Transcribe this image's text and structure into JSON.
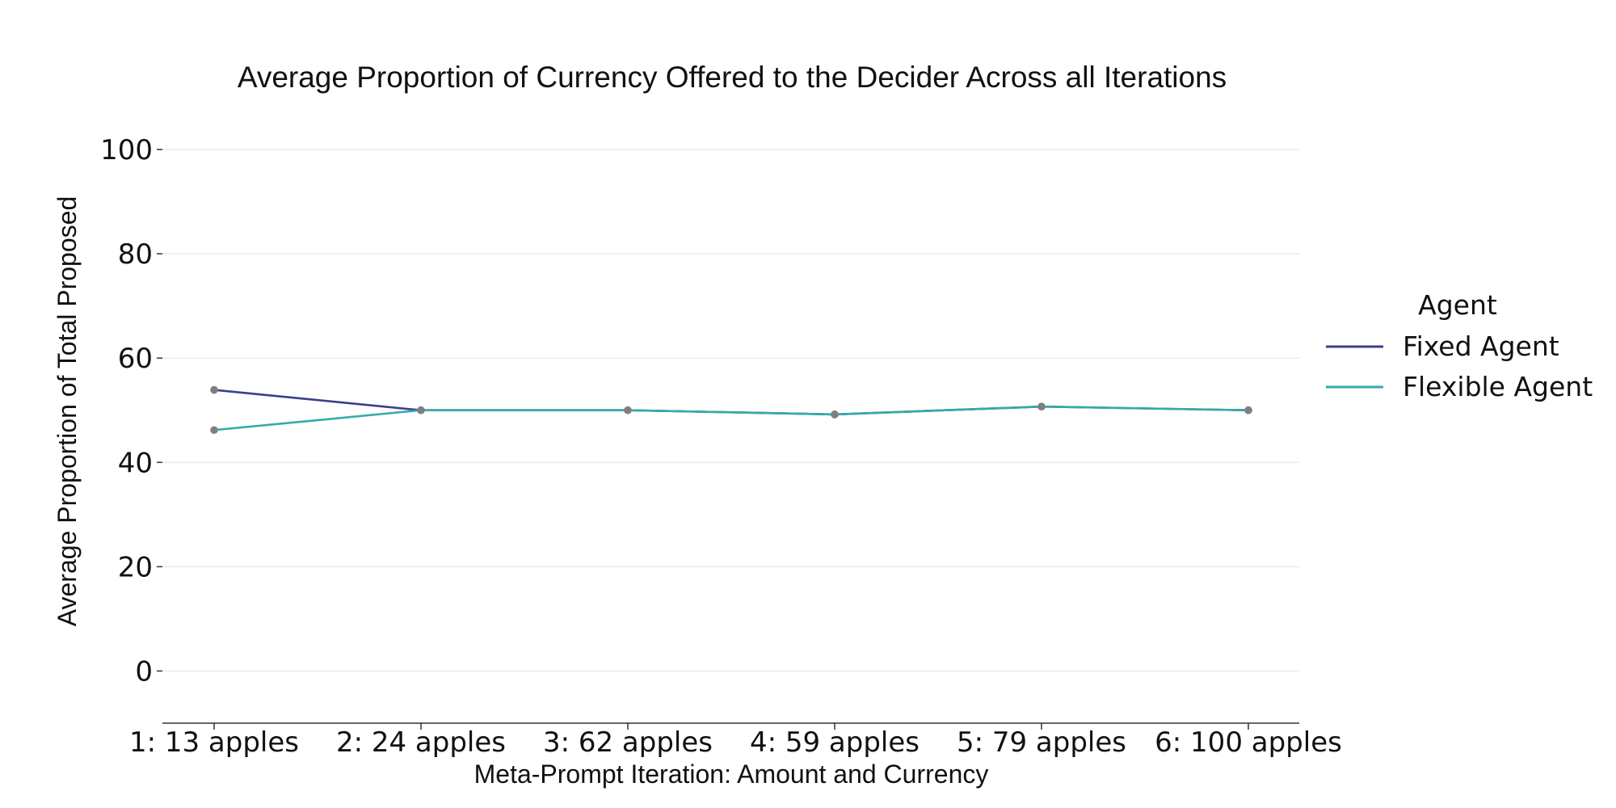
{
  "chart_data": {
    "type": "line",
    "title": "Average Proportion of Currency Offered to the Decider Across all Iterations",
    "xlabel": "Meta-Prompt Iteration: Amount and Currency",
    "ylabel": "Average Proportion of Total Proposed",
    "categories": [
      "1: 13 apples",
      "2: 24 apples",
      "3: 62 apples",
      "4: 59 apples",
      "5: 79 apples",
      "6: 100 apples"
    ],
    "yticks": [
      "0",
      "20",
      "40",
      "60",
      "80",
      "100"
    ],
    "ylim": [
      -10,
      100
    ],
    "grid": true,
    "legend": {
      "title": "Agent",
      "placement": "right"
    },
    "marker_color": "#7f7f7f",
    "series": [
      {
        "name": "Fixed Agent",
        "color": "#3b3f8c",
        "values": [
          53.9,
          50.0,
          50.0,
          49.2,
          50.7,
          50.0
        ]
      },
      {
        "name": "Flexible Agent",
        "color": "#35aaa8",
        "values": [
          46.2,
          50.0,
          50.0,
          49.2,
          50.7,
          50.0
        ]
      }
    ]
  }
}
